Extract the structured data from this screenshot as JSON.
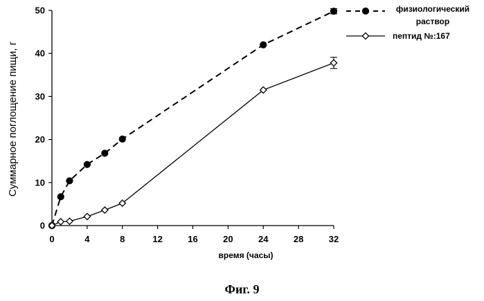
{
  "figure_caption": "Фиг. 9",
  "chart_data": {
    "type": "line",
    "xlabel": "время (часы)",
    "ylabel": "Суммарное поглощение пищи, г",
    "xlim": [
      0,
      32
    ],
    "ylim": [
      0,
      50
    ],
    "x_ticks": [
      0,
      4,
      8,
      12,
      16,
      20,
      24,
      28,
      32
    ],
    "y_ticks": [
      0,
      10,
      20,
      30,
      40,
      50
    ],
    "legend_position": "top-right",
    "series": [
      {
        "name": "физиологический раствор",
        "marker": "filled-circle",
        "line_style": "dashed",
        "color": "#000000",
        "x": [
          0,
          1,
          2,
          4,
          6,
          8,
          24,
          32
        ],
        "y": [
          0,
          6.7,
          10.4,
          14.2,
          16.8,
          20.1,
          42,
          49.8
        ],
        "error": [
          0,
          0,
          0,
          0,
          0,
          0,
          0,
          0.6
        ]
      },
      {
        "name": "пептид №:167",
        "marker": "open-diamond",
        "line_style": "solid",
        "color": "#000000",
        "x": [
          0,
          1,
          2,
          4,
          6,
          8,
          24,
          32
        ],
        "y": [
          0,
          0.9,
          1.0,
          2.1,
          3.6,
          5.2,
          31.5,
          37.8
        ],
        "error": [
          0,
          0,
          0,
          0,
          0,
          0,
          0,
          1.3
        ]
      }
    ]
  }
}
